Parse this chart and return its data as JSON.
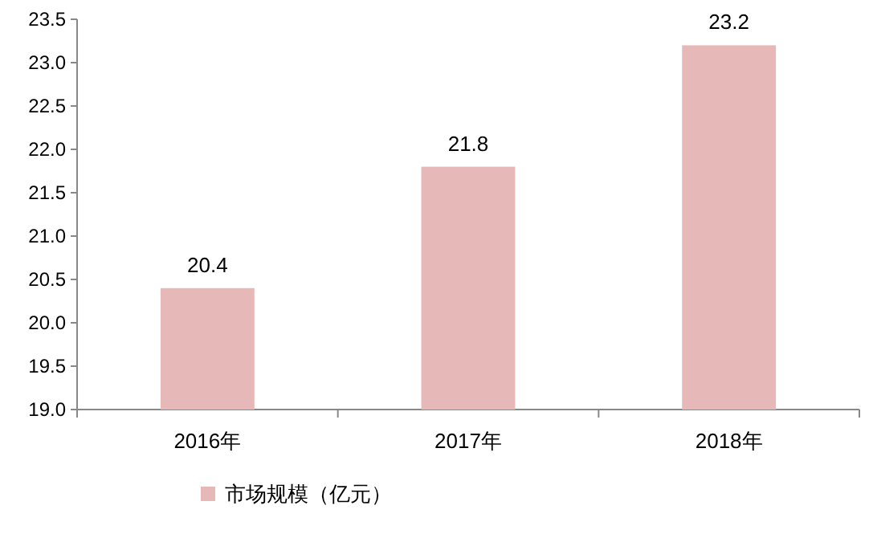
{
  "chart_data": {
    "type": "bar",
    "categories": [
      "2016年",
      "2017年",
      "2018年"
    ],
    "series": [
      {
        "name": "市场规模（亿元）",
        "color": "#e6b9b8",
        "values": [
          20.4,
          21.8,
          23.2
        ]
      }
    ],
    "ylim": [
      19,
      23.5
    ],
    "yticks": [
      {
        "value": 19,
        "label": "19.0"
      },
      {
        "value": 19.5,
        "label": "19.5"
      },
      {
        "value": 20,
        "label": "20.0"
      },
      {
        "value": 20.5,
        "label": "20.5"
      },
      {
        "value": 21,
        "label": "21.0"
      },
      {
        "value": 21.5,
        "label": "21.5"
      },
      {
        "value": 22,
        "label": "22.0"
      },
      {
        "value": 22.5,
        "label": "22.5"
      },
      {
        "value": 23,
        "label": "23.0"
      },
      {
        "value": 23.5,
        "label": "23.5"
      }
    ],
    "data_labels": true,
    "grid": false,
    "legend": "bottom"
  }
}
